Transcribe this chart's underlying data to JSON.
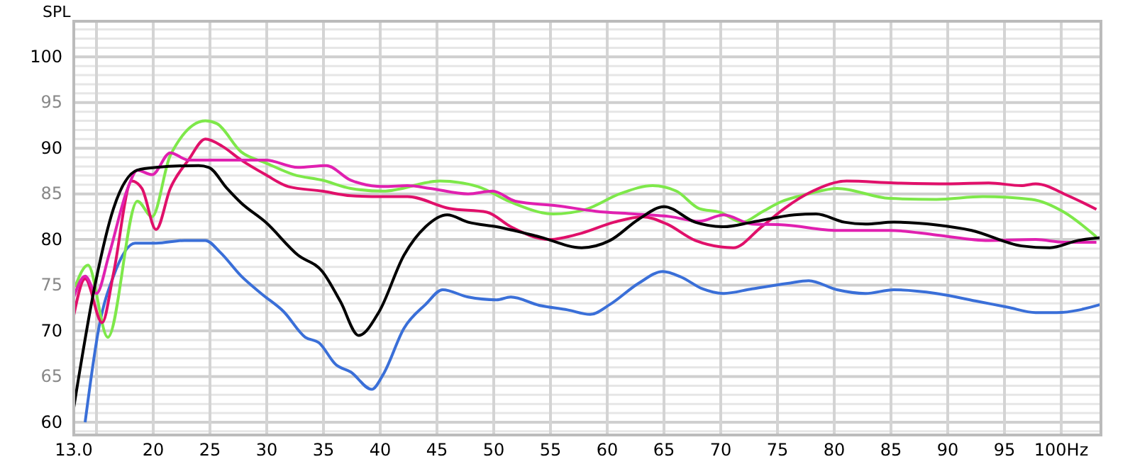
{
  "chart_data": {
    "type": "line",
    "ylabel": "SPL",
    "xlim": [
      13,
      103.5
    ],
    "ylim": [
      58.6,
      103.9
    ],
    "xticks": [
      {
        "value": 13,
        "label": "13.0"
      },
      {
        "value": 15,
        "label": null
      },
      20,
      25,
      30,
      35,
      40,
      45,
      50,
      55,
      60,
      65,
      70,
      75,
      80,
      85,
      90,
      95,
      {
        "value": 100,
        "label": "100Hz"
      }
    ],
    "yticks": [
      60,
      65,
      70,
      75,
      80,
      85,
      90,
      95,
      100
    ],
    "grid": true,
    "line_style": "solid",
    "marker": "none",
    "series": [
      {
        "color": "#3a6fd8",
        "x": [
          14,
          15.25,
          16.5,
          18.4,
          20.25,
          22.75,
          24.6,
          25.9,
          27.75,
          29.6,
          31.5,
          33.4,
          34.6,
          36.1,
          37.4,
          39.25,
          40.25,
          42.1,
          44,
          45.5,
          47.75,
          50.25,
          51.5,
          54,
          56.5,
          58.5,
          60.25,
          62.75,
          64.9,
          66.5,
          68.4,
          70.25,
          72.75,
          75.9,
          77.75,
          80.25,
          82.75,
          85.25,
          89,
          92.75,
          95.25,
          97.75,
          99.6,
          103.5
        ],
        "values": [
          60,
          70.6,
          76,
          79.6,
          79.6,
          79.9,
          79.9,
          78.6,
          76,
          74,
          72.1,
          69.3,
          68.7,
          66.3,
          65.5,
          63.6,
          65.2,
          70.3,
          72.9,
          74.5,
          73.7,
          73.4,
          73.7,
          72.8,
          72.3,
          71.8,
          72.9,
          75.2,
          76.5,
          75.9,
          74.6,
          74.1,
          74.6,
          75.2,
          75.5,
          74.5,
          74.1,
          74.5,
          74.1,
          73.2,
          72.6,
          72,
          72,
          72.9
        ]
      },
      {
        "color": "#7ee84a",
        "x": [
          13.1,
          14.25,
          16,
          18.6,
          19.9,
          21.5,
          24.6,
          25.6,
          27.75,
          29.9,
          32.4,
          34.9,
          37.4,
          40.25,
          45.25,
          48.6,
          51.5,
          55.25,
          58.1,
          61.1,
          64,
          66.1,
          68.1,
          69.9,
          71.9,
          73.6,
          75.25,
          77.75,
          80.25,
          84.9,
          89,
          93.1,
          97.4,
          100.25,
          103.1
        ],
        "values": [
          74.8,
          77.2,
          69.3,
          84.2,
          82.5,
          89.2,
          93,
          92.7,
          89.6,
          88.4,
          87.1,
          86.5,
          85.6,
          85.3,
          86.4,
          85.8,
          84.1,
          82.8,
          83.3,
          85,
          85.9,
          85.3,
          83.4,
          83,
          81.9,
          83,
          84.1,
          85,
          85.6,
          84.5,
          84.4,
          84.7,
          84.4,
          83,
          80.3
        ]
      },
      {
        "color": "#e0106a",
        "x": [
          13,
          14,
          15.5,
          16.5,
          18.1,
          19,
          20.25,
          21.5,
          23.1,
          24.6,
          26.1,
          27.75,
          29.9,
          31.9,
          34.9,
          37.4,
          40.25,
          42.4,
          46.1,
          49.4,
          51.5,
          54.9,
          57.75,
          60.6,
          63.1,
          65.25,
          67.75,
          71.1,
          73.6,
          75.6,
          78.1,
          81.1,
          85.25,
          90.25,
          93.6,
          96.5,
          97.75,
          100.6,
          103.1
        ],
        "values": [
          71.7,
          75.7,
          70.9,
          76.3,
          86.4,
          85.6,
          81.1,
          85.6,
          88.7,
          91,
          90.2,
          88.7,
          87.1,
          85.8,
          85.3,
          84.8,
          84.7,
          84.7,
          83.4,
          83,
          81.4,
          80,
          80.7,
          81.9,
          82.5,
          81.7,
          79.9,
          79.1,
          81.4,
          83.4,
          85.3,
          86.4,
          86.2,
          86.1,
          86.2,
          85.9,
          86.1,
          84.8,
          83.3
        ]
      },
      {
        "color": "#e020b0",
        "x": [
          13,
          14,
          15,
          16.1,
          17.75,
          18.6,
          19.9,
          21.5,
          23.1,
          27.4,
          29.9,
          32.75,
          35.25,
          37.4,
          40.25,
          42.4,
          44.4,
          47.75,
          49.9,
          51.9,
          55.6,
          59,
          62.4,
          65.6,
          68.1,
          70.25,
          72.75,
          75.6,
          80.25,
          84.9,
          89,
          93.6,
          97.75,
          100.25,
          103.1
        ],
        "values": [
          73.7,
          76,
          74.1,
          78.3,
          85.6,
          87.6,
          87.1,
          89.5,
          88.7,
          88.7,
          88.7,
          87.9,
          88.1,
          86.5,
          85.8,
          85.9,
          85.6,
          85,
          85.3,
          84.2,
          83.7,
          83.1,
          82.8,
          82.5,
          82,
          82.7,
          81.7,
          81.6,
          81,
          81,
          80.5,
          79.9,
          80,
          79.7,
          79.7
        ]
      },
      {
        "color": "#000000",
        "x": [
          13,
          14.9,
          16.5,
          18.6,
          20.25,
          24,
          24.9,
          26.5,
          27.75,
          29.9,
          32.75,
          34.9,
          36.5,
          38.1,
          39.9,
          42.1,
          44,
          45.9,
          47.75,
          50.25,
          54,
          57.75,
          60.25,
          62.75,
          65,
          67.75,
          70.25,
          72.75,
          76.5,
          78.4,
          80.9,
          82.75,
          85.25,
          89,
          92.1,
          96.5,
          99,
          101.5,
          103.5
        ],
        "values": [
          61.6,
          75.2,
          83.4,
          87.6,
          87.9,
          88.1,
          87.9,
          85.6,
          84,
          81.9,
          78.3,
          76.5,
          73.2,
          69.5,
          72.1,
          78.3,
          81.4,
          82.7,
          81.9,
          81.4,
          80.3,
          79.1,
          79.9,
          82.2,
          83.6,
          81.9,
          81.4,
          81.9,
          82.7,
          82.8,
          81.9,
          81.7,
          81.9,
          81.6,
          81,
          79.3,
          79.1,
          79.9,
          80.2
        ]
      }
    ]
  }
}
